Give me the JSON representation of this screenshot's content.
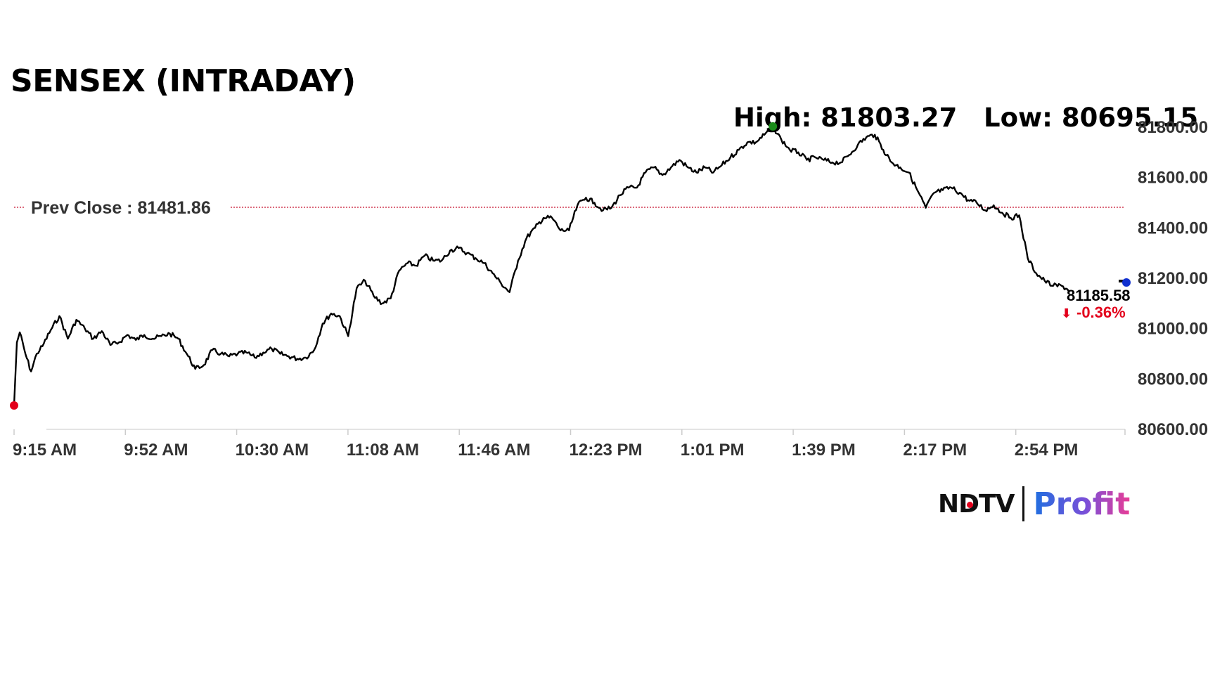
{
  "chart_data": {
    "type": "line",
    "title": "SENSEX (INTRADAY)",
    "high_label": "High: 81803.27",
    "low_label": "Low: 80695.15",
    "prev_close_label": "Prev Close : 81481.86",
    "prev_close": 81481.86,
    "last_value_label": "81185.58",
    "change_label": "-0.36%",
    "x_tick_labels": [
      "9:15 AM",
      "9:52 AM",
      "10:30 AM",
      "11:08 AM",
      "11:46 AM",
      "12:23 PM",
      "1:01 PM",
      "1:39 PM",
      "2:17 PM",
      "2:54 PM"
    ],
    "y_tick_labels": [
      "81800.00",
      "81600.00",
      "81400.00",
      "81200.00",
      "81000.00",
      "80800.00",
      "80600.00"
    ],
    "y_ticks": [
      81800,
      81600,
      81400,
      81200,
      81000,
      80800,
      80600
    ],
    "ylim": [
      80600,
      81800
    ],
    "series": [
      {
        "x": [
          0,
          1,
          2,
          4,
          6,
          8,
          10,
          13,
          16,
          19,
          22,
          25,
          28,
          31,
          34,
          37,
          40,
          43,
          46,
          49,
          52,
          55,
          58,
          61,
          64,
          67,
          70,
          73,
          76,
          79,
          82,
          85,
          88,
          91,
          94,
          97,
          100,
          103,
          106,
          109,
          112,
          115,
          118,
          121,
          124,
          127,
          130,
          133,
          136,
          139,
          142,
          145,
          148,
          151,
          154,
          157,
          160,
          163,
          166,
          169,
          172,
          175,
          178,
          181,
          184,
          187,
          190,
          193,
          196,
          199,
          202,
          205,
          208,
          211,
          214,
          217,
          220,
          223,
          226,
          229,
          232,
          235,
          238,
          241,
          244,
          247,
          250,
          253,
          256,
          259,
          262,
          265,
          268,
          271,
          274,
          277,
          280,
          283,
          286,
          289,
          292,
          295,
          298,
          301,
          304,
          307,
          310,
          313,
          316,
          319,
          322,
          325,
          328,
          331,
          334,
          337,
          340,
          343,
          346,
          349,
          352,
          355,
          358,
          361,
          364,
          367,
          370,
          373
        ],
        "y": [
          80695,
          80945,
          80985,
          80900,
          80830,
          80900,
          80930,
          80995,
          81050,
          80960,
          81035,
          81000,
          80960,
          80990,
          80935,
          80945,
          80975,
          80955,
          80975,
          80960,
          80970,
          80980,
          80960,
          80900,
          80840,
          80855,
          80915,
          80900,
          80890,
          80900,
          80905,
          80885,
          80905,
          80920,
          80900,
          80890,
          80880,
          80885,
          80915,
          81020,
          81060,
          81050,
          80970,
          81160,
          81190,
          81130,
          81100,
          81120,
          81230,
          81260,
          81250,
          81290,
          81270,
          81270,
          81310,
          81320,
          81300,
          81280,
          81260,
          81220,
          81180,
          81145,
          81270,
          81360,
          81400,
          81440,
          81440,
          81390,
          81390,
          81490,
          81520,
          81500,
          81470,
          81480,
          81530,
          81560,
          81560,
          81620,
          81640,
          81610,
          81640,
          81670,
          81640,
          81620,
          81640,
          81620,
          81650,
          81680,
          81710,
          81740,
          81740,
          81770,
          81803,
          81750,
          81710,
          81700,
          81670,
          81680,
          81670,
          81660,
          81660,
          81690,
          81730,
          81760,
          81770,
          81710,
          81660,
          81640,
          81620,
          81550,
          81480,
          81540,
          81550,
          81560,
          81540,
          81510,
          81500,
          81470,
          81490,
          81460,
          81440,
          81450,
          81280,
          81220,
          81190,
          81170,
          81170,
          81150
        ]
      }
    ]
  },
  "logo": {
    "brand": "NDTV",
    "product": "Profit"
  }
}
